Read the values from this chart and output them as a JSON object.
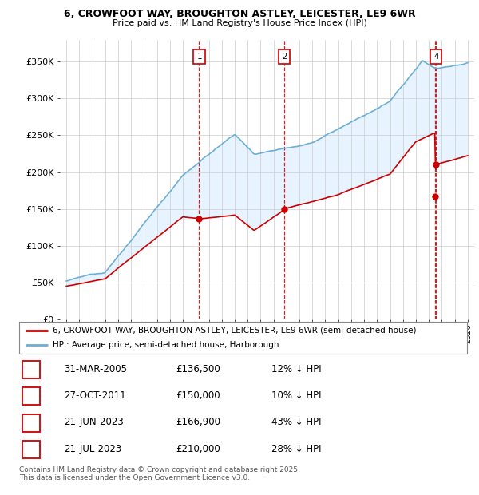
{
  "title": "6, CROWFOOT WAY, BROUGHTON ASTLEY, LEICESTER, LE9 6WR",
  "subtitle": "Price paid vs. HM Land Registry's House Price Index (HPI)",
  "legend_line1": "6, CROWFOOT WAY, BROUGHTON ASTLEY, LEICESTER, LE9 6WR (semi-detached house)",
  "legend_line2": "HPI: Average price, semi-detached house, Harborough",
  "footer": "Contains HM Land Registry data © Crown copyright and database right 2025.\nThis data is licensed under the Open Government Licence v3.0.",
  "transactions": [
    {
      "num": 1,
      "date": "31-MAR-2005",
      "price": "£136,500",
      "pct": "12% ↓ HPI",
      "year": 2005.25,
      "price_val": 136500
    },
    {
      "num": 2,
      "date": "27-OCT-2011",
      "price": "£150,000",
      "pct": "10% ↓ HPI",
      "year": 2011.83,
      "price_val": 150000
    },
    {
      "num": 3,
      "date": "21-JUN-2023",
      "price": "£166,900",
      "pct": "43% ↓ HPI",
      "year": 2023.47,
      "price_val": 166900
    },
    {
      "num": 4,
      "date": "21-JUL-2023",
      "price": "£210,000",
      "pct": "28% ↓ HPI",
      "year": 2023.55,
      "price_val": 210000
    }
  ],
  "hpi_color": "#6baed6",
  "price_color": "#cc0000",
  "vline_color": "#cc0000",
  "background_color": "#ffffff",
  "grid_color": "#cccccc",
  "shade_color": "#ddeeff",
  "ylim": [
    0,
    380000
  ],
  "xlim": [
    1994.5,
    2026.5
  ],
  "yticks": [
    0,
    50000,
    100000,
    150000,
    200000,
    250000,
    300000,
    350000
  ],
  "ytick_labels": [
    "£0",
    "£50K",
    "£100K",
    "£150K",
    "£200K",
    "£250K",
    "£300K",
    "£350K"
  ],
  "fig_width": 6.0,
  "fig_height": 6.2
}
